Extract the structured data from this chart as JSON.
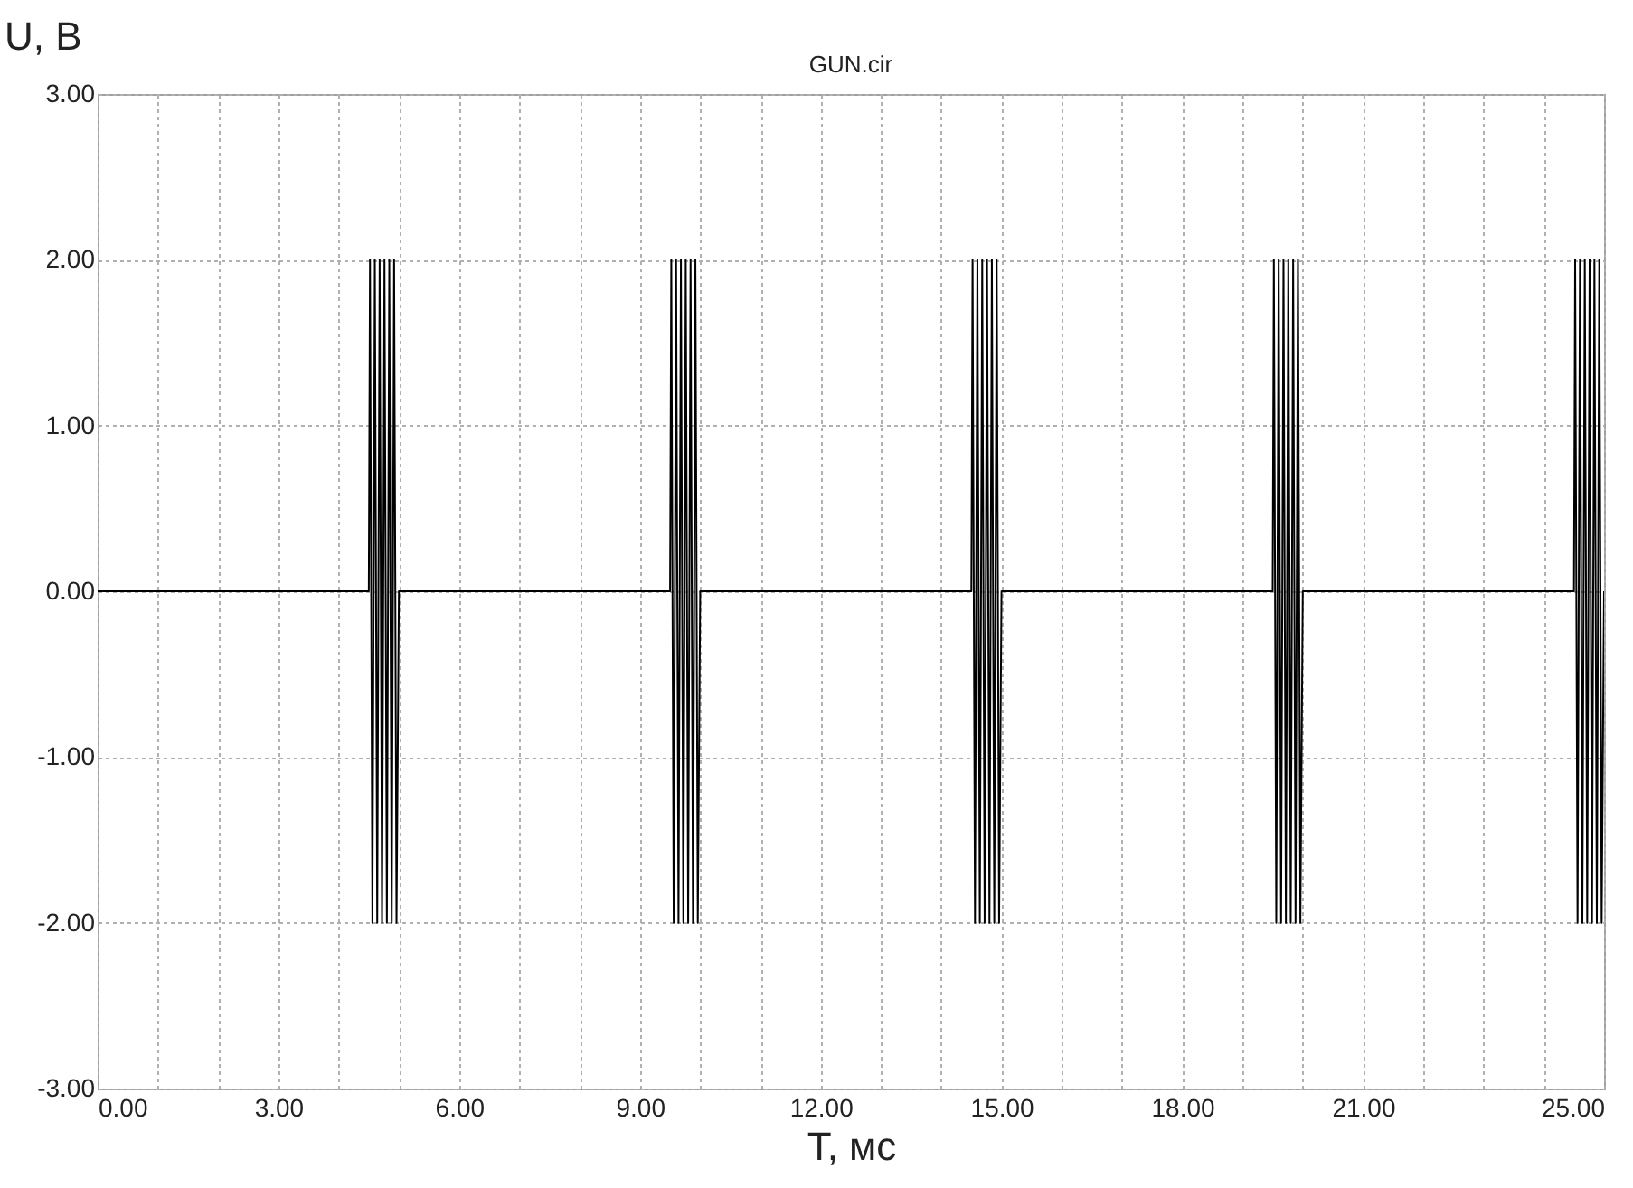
{
  "chart_data": {
    "type": "line",
    "title": "GUN.cir",
    "xlabel": "T, мс",
    "ylabel": "U, B",
    "xlim": [
      0,
      25
    ],
    "ylim": [
      -3,
      3
    ],
    "xticks": [
      {
        "value": 0,
        "label": "0.00"
      },
      {
        "value": 1,
        "label": null
      },
      {
        "value": 2,
        "label": null
      },
      {
        "value": 3,
        "label": "3.00"
      },
      {
        "value": 4,
        "label": null
      },
      {
        "value": 5,
        "label": null
      },
      {
        "value": 6,
        "label": "6.00"
      },
      {
        "value": 7,
        "label": null
      },
      {
        "value": 8,
        "label": null
      },
      {
        "value": 9,
        "label": "9.00"
      },
      {
        "value": 10,
        "label": null
      },
      {
        "value": 11,
        "label": null
      },
      {
        "value": 12,
        "label": "12.00"
      },
      {
        "value": 13,
        "label": null
      },
      {
        "value": 14,
        "label": null
      },
      {
        "value": 15,
        "label": "15.00"
      },
      {
        "value": 16,
        "label": null
      },
      {
        "value": 17,
        "label": null
      },
      {
        "value": 18,
        "label": "18.00"
      },
      {
        "value": 19,
        "label": null
      },
      {
        "value": 20,
        "label": null
      },
      {
        "value": 21,
        "label": "21.00"
      },
      {
        "value": 22,
        "label": null
      },
      {
        "value": 23,
        "label": null
      },
      {
        "value": 24,
        "label": null
      },
      {
        "value": 25,
        "label": "25.00"
      }
    ],
    "yticks": [
      {
        "value": -3,
        "label": "-3.00"
      },
      {
        "value": -2,
        "label": "-2.00"
      },
      {
        "value": -1,
        "label": "-1.00"
      },
      {
        "value": 0,
        "label": "0.00"
      },
      {
        "value": 1,
        "label": "1.00"
      },
      {
        "value": 2,
        "label": "2.00"
      },
      {
        "value": 3,
        "label": "3.00"
      }
    ],
    "grid": true,
    "marker": "none",
    "line_style": "solid",
    "x": [
      0,
      4.5,
      4.52,
      4.56,
      4.6,
      4.64,
      4.68,
      4.72,
      4.76,
      4.8,
      4.84,
      4.88,
      4.92,
      4.96,
      5.0,
      9.5,
      9.52,
      9.56,
      9.6,
      9.64,
      9.68,
      9.72,
      9.76,
      9.8,
      9.84,
      9.88,
      9.92,
      9.96,
      10.0,
      14.5,
      14.52,
      14.56,
      14.6,
      14.64,
      14.68,
      14.72,
      14.76,
      14.8,
      14.84,
      14.88,
      14.92,
      14.96,
      15.0,
      19.5,
      19.52,
      19.56,
      19.6,
      19.64,
      19.68,
      19.72,
      19.76,
      19.8,
      19.84,
      19.88,
      19.92,
      19.96,
      20.0,
      24.5,
      24.52,
      24.56,
      24.6,
      24.64,
      24.68,
      24.72,
      24.76,
      24.8,
      24.84,
      24.88,
      24.92,
      24.96,
      25.0
    ],
    "series": [
      {
        "color": "#000000",
        "values": [
          0,
          0,
          2,
          -2,
          2,
          -2,
          2,
          -2,
          2,
          -2,
          2,
          -2,
          2,
          -2,
          0,
          0,
          2,
          -2,
          2,
          -2,
          2,
          -2,
          2,
          -2,
          2,
          -2,
          2,
          -2,
          0,
          0,
          2,
          -2,
          2,
          -2,
          2,
          -2,
          2,
          -2,
          2,
          -2,
          2,
          -2,
          0,
          0,
          2,
          -2,
          2,
          -2,
          2,
          -2,
          2,
          -2,
          2,
          -2,
          2,
          -2,
          0,
          0,
          2,
          -2,
          2,
          -2,
          2,
          -2,
          2,
          -2,
          2,
          -2,
          2,
          -2,
          0
        ]
      }
    ]
  }
}
